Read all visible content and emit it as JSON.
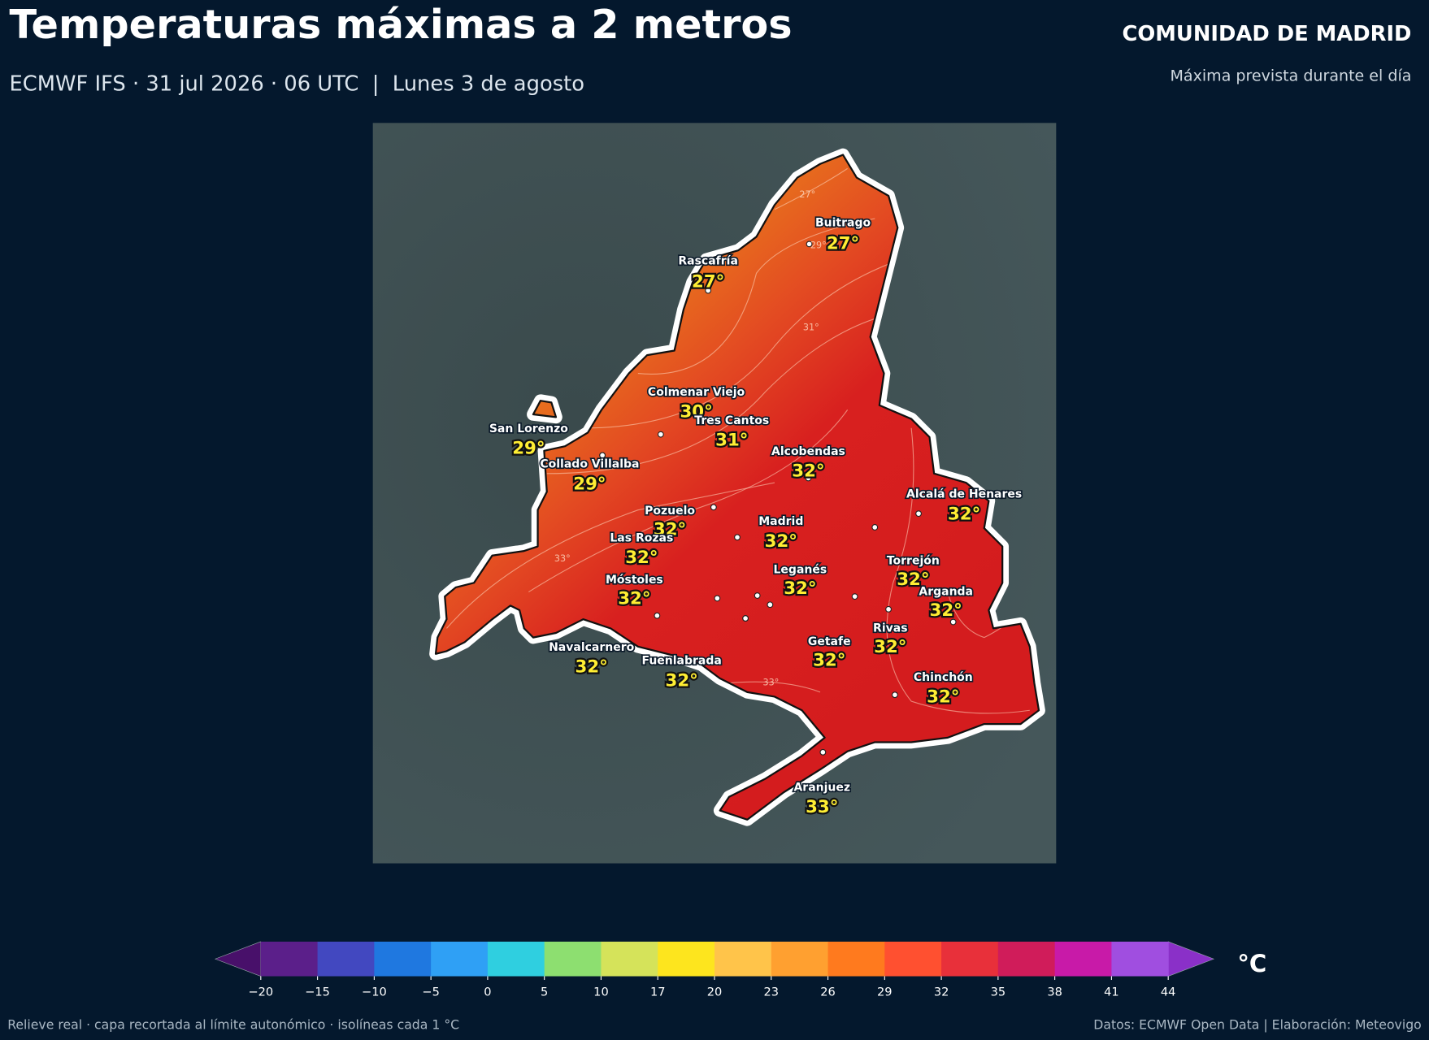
{
  "header": {
    "title": "Temperaturas máximas a 2 metros",
    "subtitle": "ECMWF IFS · 31 jul 2026 · 06 UTC  |  Lunes 3 de agosto",
    "region": "COMUNIDAD DE MADRID",
    "region_note": "Máxima prevista durante el día"
  },
  "map": {
    "cities": [
      {
        "name": "Buitrago",
        "temp": "27°"
      },
      {
        "name": "Rascafría",
        "temp": "27°"
      },
      {
        "name": "Colmenar Viejo",
        "temp": "30°"
      },
      {
        "name": "Tres Cantos",
        "temp": "31°"
      },
      {
        "name": "San Lorenzo",
        "temp": "29°"
      },
      {
        "name": "Collado Villalba",
        "temp": "29°"
      },
      {
        "name": "Alcobendas",
        "temp": "32°"
      },
      {
        "name": "Alcalá de Henares",
        "temp": "32°"
      },
      {
        "name": "Pozuelo",
        "temp": "32°"
      },
      {
        "name": "Madrid",
        "temp": "32°"
      },
      {
        "name": "Las Rozas",
        "temp": "32°"
      },
      {
        "name": "Torrejón",
        "temp": "32°"
      },
      {
        "name": "Leganés",
        "temp": "32°"
      },
      {
        "name": "Móstoles",
        "temp": "32°"
      },
      {
        "name": "Arganda",
        "temp": "32°"
      },
      {
        "name": "Rivas",
        "temp": "32°"
      },
      {
        "name": "Getafe",
        "temp": "32°"
      },
      {
        "name": "Navalcarnero",
        "temp": "32°"
      },
      {
        "name": "Fuenlabrada",
        "temp": "32°"
      },
      {
        "name": "Chinchón",
        "temp": "32°"
      },
      {
        "name": "Aranjuez",
        "temp": "33°"
      }
    ],
    "isolines": [
      "27°",
      "29°",
      "31°",
      "33°",
      "33°"
    ]
  },
  "colorbar": {
    "ticks": [
      "−20",
      "−15",
      "−10",
      "−5",
      "0",
      "5",
      "10",
      "17",
      "20",
      "23",
      "26",
      "29",
      "32",
      "35",
      "38",
      "41",
      "44"
    ],
    "unit": "°C"
  },
  "footer": {
    "left": "Relieve real · capa recortada al límite autonómico · isolíneas cada 1 °C",
    "right": "Datos: ECMWF Open Data | Elaboración: Meteovigo"
  }
}
